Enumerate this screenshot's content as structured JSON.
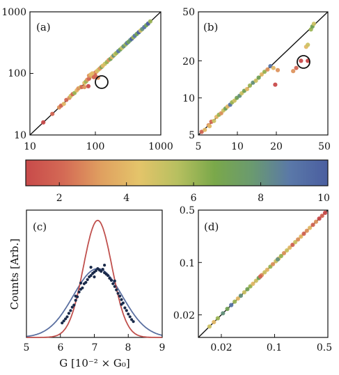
{
  "chart_data": [
    {
      "panel": "(a)",
      "type": "scatter",
      "xscale": "log",
      "yscale": "log",
      "xlim": [
        10,
        1000
      ],
      "ylim": [
        10,
        1000
      ],
      "xticks": [
        10,
        100,
        1000
      ],
      "yticks": [
        10,
        100,
        1000
      ],
      "xtick_labels": [
        "10",
        "100",
        "1000"
      ],
      "ytick_labels": [
        "10",
        "100",
        "1000"
      ],
      "diagonal": true,
      "circled_point": [
        120,
        73
      ],
      "points": [
        [
          16,
          16,
          1
        ],
        [
          22,
          22,
          2
        ],
        [
          28,
          28,
          3
        ],
        [
          30,
          30,
          2
        ],
        [
          33,
          32,
          4
        ],
        [
          36,
          37,
          2
        ],
        [
          40,
          40,
          3
        ],
        [
          42,
          43,
          5
        ],
        [
          45,
          46,
          2
        ],
        [
          48,
          48,
          6
        ],
        [
          52,
          53,
          4
        ],
        [
          55,
          57,
          3
        ],
        [
          60,
          60,
          5
        ],
        [
          62,
          60,
          2
        ],
        [
          68,
          70,
          4
        ],
        [
          72,
          74,
          6
        ],
        [
          75,
          79,
          3
        ],
        [
          80,
          82,
          2
        ],
        [
          88,
          90,
          5
        ],
        [
          92,
          89,
          4
        ],
        [
          95,
          98,
          3
        ],
        [
          100,
          103,
          2
        ],
        [
          105,
          108,
          4
        ],
        [
          112,
          115,
          5
        ],
        [
          118,
          121,
          3
        ],
        [
          125,
          128,
          7
        ],
        [
          130,
          133,
          4
        ],
        [
          140,
          143,
          5
        ],
        [
          150,
          153,
          6
        ],
        [
          160,
          165,
          3
        ],
        [
          170,
          172,
          7
        ],
        [
          180,
          184,
          4
        ],
        [
          190,
          195,
          8
        ],
        [
          200,
          205,
          5
        ],
        [
          210,
          215,
          6
        ],
        [
          225,
          230,
          9
        ],
        [
          240,
          244,
          7
        ],
        [
          255,
          260,
          5
        ],
        [
          270,
          275,
          8
        ],
        [
          290,
          295,
          6
        ],
        [
          305,
          312,
          9
        ],
        [
          320,
          325,
          7
        ],
        [
          340,
          346,
          8
        ],
        [
          360,
          365,
          10
        ],
        [
          380,
          386,
          6
        ],
        [
          400,
          408,
          9
        ],
        [
          430,
          436,
          7
        ],
        [
          460,
          465,
          10
        ],
        [
          490,
          495,
          5
        ],
        [
          520,
          525,
          8
        ],
        [
          560,
          566,
          9
        ],
        [
          600,
          606,
          7
        ],
        [
          640,
          645,
          10
        ],
        [
          690,
          698,
          6
        ],
        [
          80,
          92,
          3
        ],
        [
          85,
          96,
          4
        ],
        [
          95,
          87,
          2
        ],
        [
          78,
          62,
          1
        ],
        [
          68,
          60,
          3
        ],
        [
          110,
          85,
          3
        ],
        [
          90,
          100,
          4
        ],
        [
          100,
          90,
          2
        ]
      ],
      "color_values_note": ""
    },
    {
      "panel": "(b)",
      "type": "scatter",
      "xscale": "log",
      "yscale": "log",
      "xlim": [
        5,
        50
      ],
      "ylim": [
        5,
        50
      ],
      "xticks": [
        5,
        10,
        20,
        50
      ],
      "yticks": [
        5,
        10,
        20,
        50
      ],
      "xtick_labels": [
        "5",
        "10",
        "20",
        "50"
      ],
      "ytick_labels": [
        "5",
        "10",
        "20",
        "50"
      ],
      "diagonal": true,
      "circled_point": [
        35,
        20
      ],
      "points": [
        [
          5.3,
          5.3,
          2
        ],
        [
          5.6,
          5.5,
          4
        ],
        [
          6.0,
          6.0,
          3
        ],
        [
          6.3,
          6.4,
          2
        ],
        [
          6.6,
          6.5,
          5
        ],
        [
          6.9,
          7.0,
          4
        ],
        [
          7.2,
          7.3,
          6
        ],
        [
          7.5,
          7.5,
          3
        ],
        [
          7.8,
          7.9,
          5
        ],
        [
          8.1,
          8.2,
          7
        ],
        [
          8.4,
          8.5,
          4
        ],
        [
          8.8,
          8.8,
          9
        ],
        [
          9.1,
          9.2,
          6
        ],
        [
          9.5,
          9.5,
          5
        ],
        [
          9.9,
          10.0,
          7
        ],
        [
          10.4,
          10.4,
          8
        ],
        [
          10.8,
          10.9,
          5
        ],
        [
          11.3,
          11.4,
          7
        ],
        [
          11.9,
          11.8,
          4
        ],
        [
          12.5,
          12.6,
          6
        ],
        [
          13.2,
          13.3,
          8
        ],
        [
          13.9,
          13.8,
          5
        ],
        [
          14.6,
          14.6,
          7
        ],
        [
          15.4,
          15.5,
          4
        ],
        [
          16.2,
          16.3,
          6
        ],
        [
          17.1,
          17.0,
          3
        ],
        [
          18.0,
          18.1,
          9
        ],
        [
          19.0,
          17.5,
          4
        ],
        [
          20.5,
          16.8,
          3
        ],
        [
          19.6,
          12.8,
          1
        ],
        [
          27,
          16.5,
          3
        ],
        [
          28.5,
          17.5,
          2
        ],
        [
          31,
          20,
          1
        ],
        [
          34,
          26,
          4
        ],
        [
          35,
          27,
          5
        ],
        [
          37,
          36,
          6
        ],
        [
          38,
          38,
          7
        ],
        [
          39,
          40,
          5
        ],
        [
          35,
          20,
          1
        ],
        [
          6.1,
          5.9,
          4
        ]
      ]
    },
    {
      "panel": "(c)",
      "type": "line+scatter",
      "xlim": [
        5,
        9
      ],
      "xticks": [
        5,
        6,
        7,
        8,
        9
      ],
      "xtick_labels": [
        "5",
        "6",
        "7",
        "8",
        "9"
      ],
      "xlabel": "G [10⁻² × G₀]",
      "ylabel": "Counts [Arb.]",
      "series": [
        {
          "style": "line",
          "color": "#5a6fa0",
          "mean": 7.1,
          "sigma": 0.72,
          "amplitude": 1.0
        },
        {
          "style": "line",
          "color": "#c0504d",
          "mean": 7.1,
          "sigma": 0.42,
          "amplitude": 1.7
        }
      ],
      "scatter": [
        [
          6.05,
          0.21
        ],
        [
          6.1,
          0.24
        ],
        [
          6.15,
          0.27
        ],
        [
          6.2,
          0.3
        ],
        [
          6.25,
          0.35
        ],
        [
          6.3,
          0.39
        ],
        [
          6.35,
          0.44
        ],
        [
          6.4,
          0.47
        ],
        [
          6.45,
          0.54
        ],
        [
          6.5,
          0.59
        ],
        [
          6.55,
          0.66
        ],
        [
          6.6,
          0.7
        ],
        [
          6.65,
          0.72
        ],
        [
          6.7,
          0.78
        ],
        [
          6.75,
          0.8
        ],
        [
          6.8,
          0.84
        ],
        [
          6.85,
          0.88
        ],
        [
          6.9,
          0.9
        ],
        [
          6.95,
          0.93
        ],
        [
          7.0,
          0.95
        ],
        [
          7.05,
          0.97
        ],
        [
          7.1,
          1.0
        ],
        [
          7.15,
          0.98
        ],
        [
          7.2,
          0.96
        ],
        [
          7.25,
          0.99
        ],
        [
          7.3,
          0.94
        ],
        [
          7.35,
          0.92
        ],
        [
          7.4,
          0.9
        ],
        [
          7.45,
          0.86
        ],
        [
          7.5,
          0.83
        ],
        [
          7.55,
          0.78
        ],
        [
          7.6,
          0.74
        ],
        [
          7.65,
          0.69
        ],
        [
          7.7,
          0.64
        ],
        [
          7.75,
          0.6
        ],
        [
          7.8,
          0.55
        ],
        [
          7.85,
          0.5
        ],
        [
          7.9,
          0.43
        ],
        [
          7.95,
          0.39
        ],
        [
          8.0,
          0.34
        ],
        [
          8.05,
          0.3
        ],
        [
          8.1,
          0.26
        ],
        [
          8.15,
          0.23
        ],
        [
          6.6,
          0.79
        ],
        [
          6.9,
          1.02
        ],
        [
          7.3,
          1.05
        ],
        [
          7.0,
          0.88
        ],
        [
          7.6,
          0.82
        ],
        [
          6.45,
          0.6
        ],
        [
          7.8,
          0.48
        ]
      ]
    },
    {
      "panel": "(d)",
      "type": "scatter",
      "xscale": "log",
      "yscale": "log",
      "xlim": [
        0.01,
        0.5
      ],
      "ylim": [
        0.01,
        0.5
      ],
      "xticks": [
        0.02,
        0.1,
        0.5
      ],
      "yticks": [
        0.02,
        0.1,
        0.5
      ],
      "xtick_labels": [
        "0.02",
        "0.1",
        "0.5"
      ],
      "ytick_labels": [
        "0.02",
        "0.1",
        "0.5"
      ],
      "diagonal": true,
      "points": [
        [
          0.014,
          0.014,
          5
        ],
        [
          0.016,
          0.016,
          4
        ],
        [
          0.018,
          0.018,
          6
        ],
        [
          0.021,
          0.021,
          8
        ],
        [
          0.024,
          0.024,
          7
        ],
        [
          0.027,
          0.027,
          9
        ],
        [
          0.03,
          0.03,
          6
        ],
        [
          0.033,
          0.033,
          4
        ],
        [
          0.036,
          0.036,
          8
        ],
        [
          0.04,
          0.04,
          5
        ],
        [
          0.044,
          0.044,
          7
        ],
        [
          0.048,
          0.048,
          6
        ],
        [
          0.052,
          0.052,
          4
        ],
        [
          0.057,
          0.057,
          5
        ],
        [
          0.062,
          0.062,
          7
        ],
        [
          0.068,
          0.068,
          3
        ],
        [
          0.074,
          0.074,
          5
        ],
        [
          0.08,
          0.08,
          4
        ],
        [
          0.088,
          0.088,
          6
        ],
        [
          0.095,
          0.095,
          3
        ],
        [
          0.104,
          0.104,
          5
        ],
        [
          0.113,
          0.113,
          4
        ],
        [
          0.122,
          0.122,
          6
        ],
        [
          0.133,
          0.133,
          3
        ],
        [
          0.145,
          0.145,
          5
        ],
        [
          0.158,
          0.158,
          4
        ],
        [
          0.172,
          0.172,
          2
        ],
        [
          0.187,
          0.187,
          5
        ],
        [
          0.203,
          0.203,
          3
        ],
        [
          0.222,
          0.222,
          4
        ],
        [
          0.242,
          0.242,
          2
        ],
        [
          0.265,
          0.265,
          3
        ],
        [
          0.29,
          0.29,
          4
        ],
        [
          0.318,
          0.318,
          2
        ],
        [
          0.35,
          0.35,
          3
        ],
        [
          0.385,
          0.385,
          1
        ],
        [
          0.42,
          0.42,
          2
        ],
        [
          0.46,
          0.46,
          1
        ],
        [
          0.11,
          0.11,
          8
        ],
        [
          0.065,
          0.065,
          2
        ]
      ]
    }
  ],
  "colorbar": {
    "range": [
      1,
      10
    ],
    "ticks": [
      2,
      4,
      6,
      8,
      10
    ],
    "tick_labels": [
      "2",
      "4",
      "6",
      "8",
      "10"
    ],
    "colors": [
      "#c84a4a",
      "#d46a55",
      "#e0a060",
      "#e4c46a",
      "#b8c060",
      "#7aa84a",
      "#6a9a70",
      "#5a78a8",
      "#4a5ea0"
    ]
  },
  "scatter_dot_color_c": "#1a2a4a"
}
